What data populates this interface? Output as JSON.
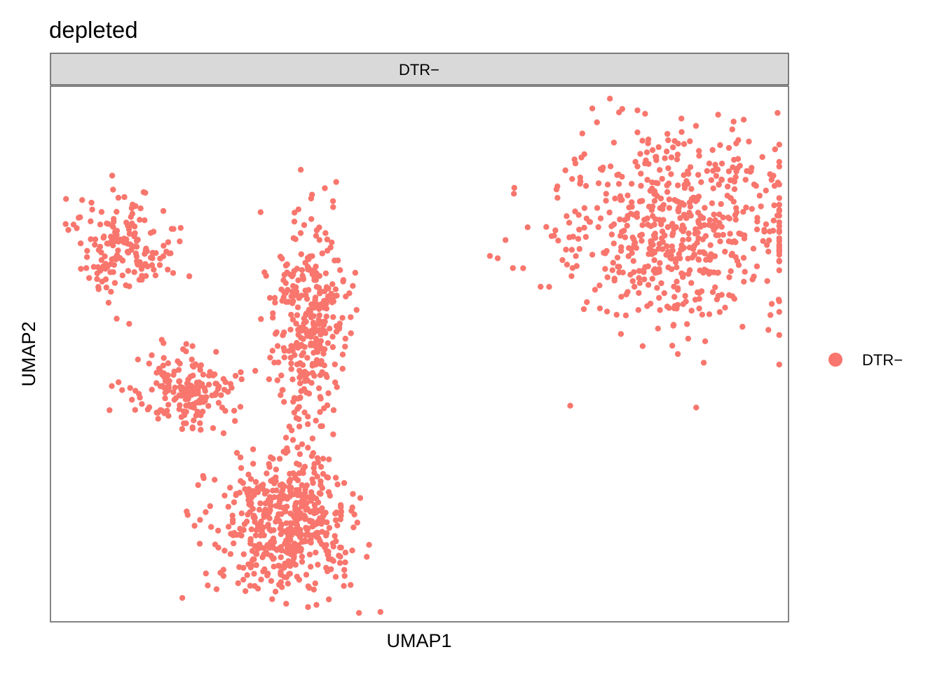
{
  "chart_data": {
    "type": "scatter",
    "title": "depleted",
    "facet_label": "DTR−",
    "xlabel": "UMAP1",
    "ylabel": "UMAP2",
    "x_ticks": "none",
    "y_ticks": "none",
    "grid": false,
    "legend_position": "right",
    "series": [
      {
        "name": "DTR−",
        "color": "#F8766D",
        "points_shown": 1800,
        "clusters": [
          {
            "label": "upper-left arm",
            "center": [
              -9.6,
              7.6
            ],
            "spread": [
              1.4,
              1.6
            ],
            "n": 170,
            "shape": "arm"
          },
          {
            "label": "lower-left arm",
            "center": [
              -7.6,
              2.8
            ],
            "spread": [
              1.5,
              1.3
            ],
            "n": 180,
            "shape": "arm"
          },
          {
            "label": "middle arm",
            "center": [
              -3.6,
              5.0
            ],
            "spread": [
              1.1,
              3.2
            ],
            "n": 330,
            "shape": "arm"
          },
          {
            "label": "bottom lobe",
            "center": [
              -4.4,
              -1.6
            ],
            "spread": [
              2.0,
              2.2
            ],
            "n": 520,
            "shape": "blob"
          },
          {
            "label": "right lobe",
            "center": [
              8.4,
              8.2
            ],
            "spread": [
              3.6,
              3.2
            ],
            "n": 600,
            "shape": "blob"
          }
        ]
      }
    ],
    "xlim": [
      -12,
      12
    ],
    "ylim": [
      -5,
      13
    ],
    "colors": {
      "points": "#F8766D",
      "strip_fill": "#D9D9D9",
      "panel_border": "#333333"
    }
  }
}
